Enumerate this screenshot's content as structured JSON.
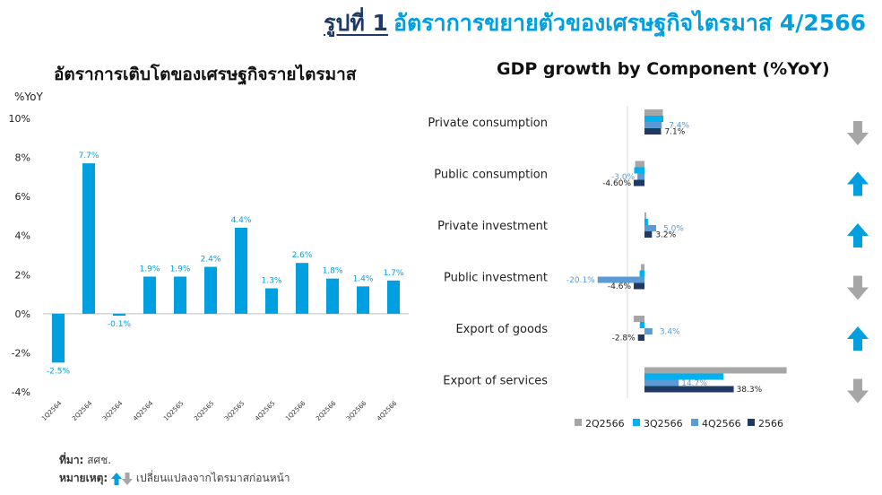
{
  "page_title": {
    "label": "รูปที่ 1",
    "text": "อัตราการขยายตัวของเศรษฐกิจไตรมาส 4/2566"
  },
  "colors": {
    "bar": "#00a0e0",
    "grey": "#a6a6a6",
    "cyan": "#00b0f0",
    "mid_blue": "#5b9bd5",
    "navy": "#1f3864",
    "arrow_up": "#00a0e0",
    "arrow_down": "#a6a6a6"
  },
  "chart_data": [
    {
      "type": "bar",
      "title": "อัตราการเติบโตของเศรษฐกิจรายไตรมาส",
      "ylabel": "%YoY",
      "ylim": [
        -4,
        10
      ],
      "yticks": [
        "10%",
        "8%",
        "6%",
        "4%",
        "2%",
        "0%",
        "-2%",
        "-4%"
      ],
      "categories": [
        "1Q2564",
        "2Q2564",
        "3Q2564",
        "4Q2564",
        "1Q2565",
        "2Q2565",
        "3Q2565",
        "4Q2565",
        "1Q2566",
        "2Q2566",
        "3Q2566",
        "4Q2566"
      ],
      "values": [
        -2.5,
        7.7,
        -0.1,
        1.9,
        1.9,
        2.4,
        4.4,
        1.3,
        2.6,
        1.8,
        1.4,
        1.7
      ],
      "data_labels": [
        "-2.5%",
        "7.7%",
        "-0.1%",
        "1.9%",
        "1.9%",
        "2.4%",
        "4.4%",
        "1.3%",
        "2.6%",
        "1.8%",
        "1.4%",
        "1.7%"
      ]
    },
    {
      "type": "bar",
      "orientation": "horizontal",
      "title": "GDP growth by Component  (%YoY)",
      "categories": [
        "Private consumption",
        "Public consumption",
        "Private investment",
        "Public investment",
        "Export of goods",
        "Export of services"
      ],
      "series": [
        {
          "name": "2Q2566",
          "values": [
            7.9,
            -4.0,
            0.8,
            -1.5,
            -4.6,
            61.0
          ]
        },
        {
          "name": "3Q2566",
          "values": [
            8.1,
            -4.4,
            1.5,
            -2.1,
            -2.0,
            33.9
          ]
        },
        {
          "name": "4Q2566",
          "values": [
            7.4,
            -3.0,
            5.0,
            -20.1,
            3.4,
            14.7
          ]
        },
        {
          "name": "2566",
          "values": [
            7.1,
            -4.6,
            3.2,
            -4.6,
            -2.8,
            38.3
          ]
        }
      ],
      "data_labels": [
        {
          "text": "7.4%",
          "series": "4Q2566"
        },
        {
          "text": "7.1%",
          "series": "2566"
        },
        {
          "text": "-3.0%",
          "series": "4Q2566"
        },
        {
          "text": "-4.60%",
          "series": "2566"
        },
        {
          "text": "5.0%",
          "series": "4Q2566"
        },
        {
          "text": "3.2%",
          "series": "2566"
        },
        {
          "text": "-20.1%",
          "series": "4Q2566"
        },
        {
          "text": "-4.6%",
          "series": "2566"
        },
        {
          "text": "3.4%",
          "series": "4Q2566"
        },
        {
          "text": "-2.8%",
          "series": "2566"
        },
        {
          "text": "14.7%",
          "series": "4Q2566"
        },
        {
          "text": "38.3%",
          "series": "2566"
        }
      ],
      "trend_arrows": [
        "down",
        "up",
        "up",
        "down",
        "up",
        "down"
      ],
      "legend": [
        "2Q2566",
        "3Q2566",
        "4Q2566",
        "2566"
      ],
      "legend_position": "bottom"
    }
  ],
  "notes": {
    "source_label": "ที่มา:",
    "source_value": "สศช.",
    "remark_label": "หมายเหตุ:",
    "remark_value": "เปลี่ยนแปลงจากไตรมาสก่อนหน้า"
  }
}
